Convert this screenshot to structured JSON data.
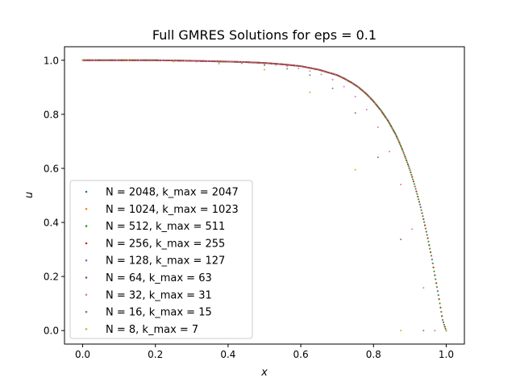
{
  "chart_data": {
    "type": "scatter",
    "title": "Full GMRES Solutions for eps = 0.1",
    "xlabel": "x",
    "ylabel": "u",
    "xlim": [
      -0.05,
      1.05
    ],
    "ylim": [
      -0.05,
      1.05
    ],
    "xticks": [
      0.0,
      0.2,
      0.4,
      0.6,
      0.8,
      1.0
    ],
    "xtick_labels": [
      "0.0",
      "0.2",
      "0.4",
      "0.6",
      "0.8",
      "1.0"
    ],
    "yticks": [
      0.0,
      0.2,
      0.4,
      0.6,
      0.8,
      1.0
    ],
    "ytick_labels": [
      "0.0",
      "0.2",
      "0.4",
      "0.6",
      "0.8",
      "1.0"
    ],
    "grid": false,
    "legend_position": "lower-left",
    "curve": {
      "x": [
        0.0,
        0.1,
        0.2,
        0.3,
        0.4,
        0.45,
        0.5,
        0.55,
        0.6,
        0.65,
        0.7,
        0.72,
        0.74,
        0.76,
        0.78,
        0.8,
        0.82,
        0.84,
        0.86,
        0.87,
        0.88,
        0.89,
        0.9,
        0.91,
        0.92,
        0.93,
        0.94,
        0.95,
        0.96,
        0.97,
        0.975,
        0.98,
        0.985,
        0.99,
        0.995,
        1.0
      ],
      "y": [
        1.0,
        1.0,
        1.0,
        0.998,
        0.995,
        0.993,
        0.99,
        0.985,
        0.978,
        0.965,
        0.945,
        0.932,
        0.917,
        0.899,
        0.876,
        0.848,
        0.815,
        0.776,
        0.728,
        0.699,
        0.667,
        0.632,
        0.595,
        0.552,
        0.505,
        0.455,
        0.398,
        0.337,
        0.27,
        0.195,
        0.158,
        0.12,
        0.08,
        0.04,
        0.018,
        0.0
      ]
    },
    "series": [
      {
        "name": "N = 2048, k_max = 2047",
        "N": 2048,
        "color": "#1f77b4"
      },
      {
        "name": "N = 1024, k_max = 1023",
        "N": 1024,
        "color": "#ff7f0e"
      },
      {
        "name": "N = 512, k_max = 511",
        "N": 512,
        "color": "#2ca02c"
      },
      {
        "name": "N = 256, k_max = 255",
        "N": 256,
        "color": "#d62728"
      },
      {
        "name": "N = 128, k_max = 127",
        "N": 128,
        "color": "#9467bd"
      },
      {
        "name": "N = 64, k_max = 63",
        "N": 64,
        "color": "#8c564b"
      },
      {
        "name": "N = 32, k_max = 31",
        "N": 32,
        "color": "#e377c2"
      },
      {
        "name": "N = 16, k_max = 15",
        "N": 16,
        "color": "#7f7f7f"
      },
      {
        "name": "N = 8, k_max = 7",
        "N": 8,
        "color": "#bcbd22"
      }
    ]
  }
}
